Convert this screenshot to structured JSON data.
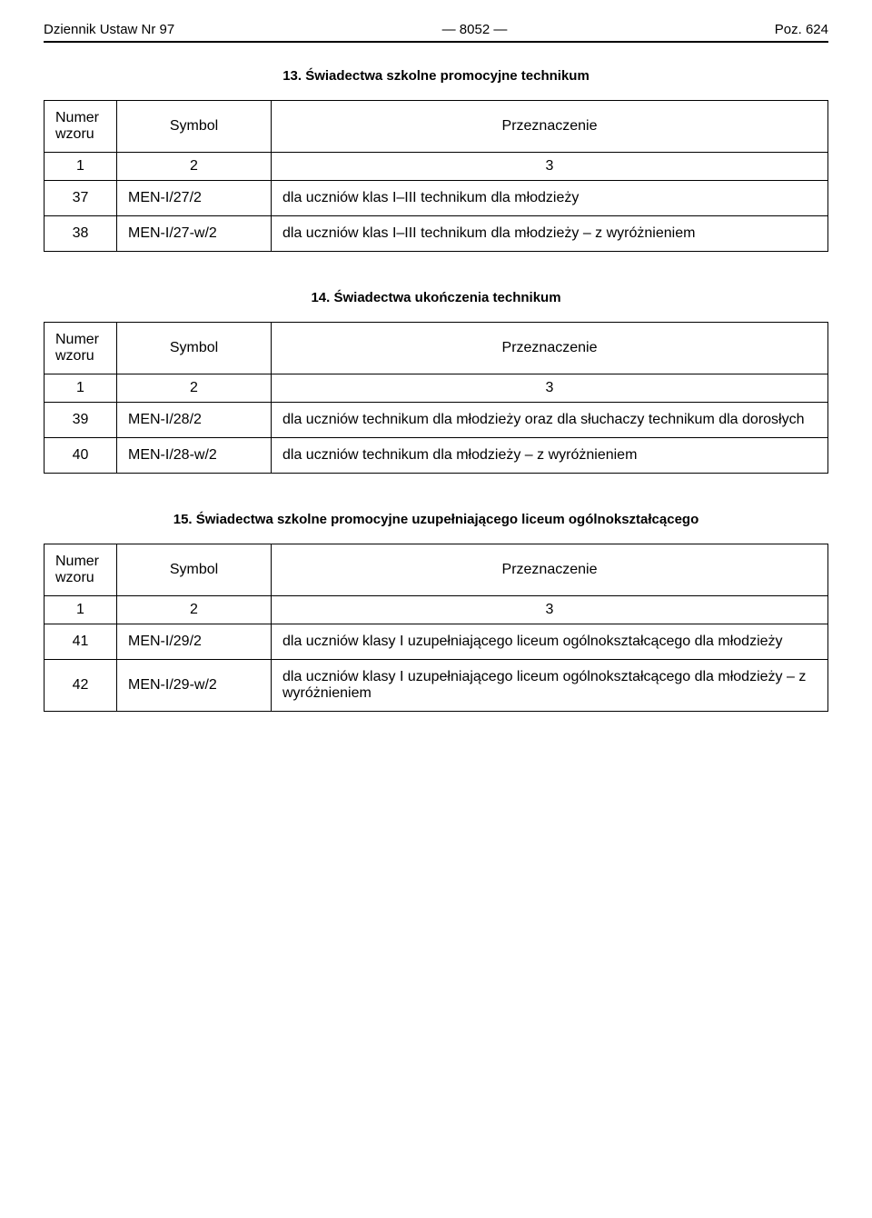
{
  "header": {
    "left": "Dziennik Ustaw Nr 97",
    "center": "—  8052  —",
    "right": "Poz. 624"
  },
  "sections": [
    {
      "title": "13. Świadectwa szkolne promocyjne technikum",
      "head": {
        "c1": "Numer wzoru",
        "c2": "Symbol",
        "c3": "Przeznaczenie"
      },
      "numrow": {
        "c1": "1",
        "c2": "2",
        "c3": "3"
      },
      "rows": [
        {
          "num": "37",
          "sym": "MEN-I/27/2",
          "desc": "dla uczniów klas I–III technikum dla młodzieży"
        },
        {
          "num": "38",
          "sym": "MEN-I/27-w/2",
          "desc": "dla uczniów klas I–III technikum dla młodzieży – z wyróżnieniem"
        }
      ]
    },
    {
      "title": "14. Świadectwa ukończenia technikum",
      "head": {
        "c1": "Numer wzoru",
        "c2": "Symbol",
        "c3": "Przeznaczenie"
      },
      "numrow": {
        "c1": "1",
        "c2": "2",
        "c3": "3"
      },
      "rows": [
        {
          "num": "39",
          "sym": "MEN-I/28/2",
          "desc": "dla uczniów technikum dla młodzieży oraz dla słuchaczy technikum dla dorosłych"
        },
        {
          "num": "40",
          "sym": "MEN-I/28-w/2",
          "desc": "dla uczniów technikum dla młodzieży – z wyróżnieniem"
        }
      ]
    },
    {
      "title": "15. Świadectwa szkolne promocyjne uzupełniającego liceum ogólnokształcącego",
      "head": {
        "c1": "Numer wzoru",
        "c2": "Symbol",
        "c3": "Przeznaczenie"
      },
      "numrow": {
        "c1": "1",
        "c2": "2",
        "c3": "3"
      },
      "rows": [
        {
          "num": "41",
          "sym": "MEN-I/29/2",
          "desc": "dla uczniów klasy I uzupełniającego liceum ogólnokształcącego dla młodzieży"
        },
        {
          "num": "42",
          "sym": "MEN-I/29-w/2",
          "desc": "dla uczniów klasy I uzupełniającego liceum ogólnokształcącego dla młodzieży – z wyróżnieniem"
        }
      ]
    }
  ]
}
